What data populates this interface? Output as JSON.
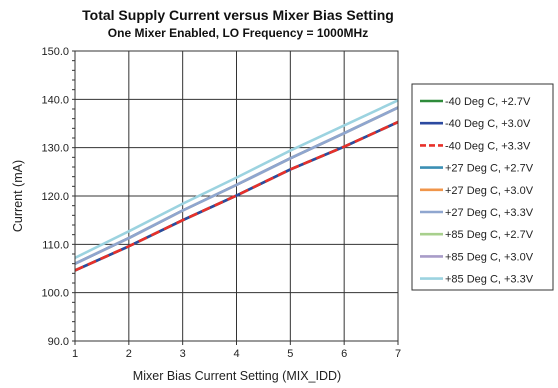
{
  "chart_data": {
    "type": "line",
    "title": "Total Supply Current versus Mixer Bias Setting",
    "subtitle": "One Mixer Enabled, LO Frequency = 1000MHz",
    "xlabel": "Mixer Bias Current Setting (MIX_IDD)",
    "ylabel": "Current (mA)",
    "xlim": [
      1,
      7
    ],
    "ylim": [
      90,
      150
    ],
    "x": [
      1,
      2,
      3,
      4,
      5,
      6,
      7
    ],
    "x_ticks": [
      "1",
      "2",
      "3",
      "4",
      "5",
      "6",
      "7"
    ],
    "y_ticks": [
      "90.0",
      "100.0",
      "110.0",
      "120.0",
      "130.0",
      "140.0",
      "150.0"
    ],
    "grid": true,
    "legend_position": "right",
    "series": [
      {
        "name": "-40 Deg C, +2.7V",
        "color": "#2e8b3a",
        "dash": false,
        "values": [
          104.6,
          109.6,
          115.0,
          120.1,
          125.5,
          130.2,
          135.3
        ]
      },
      {
        "name": "-40 Deg C, +3.0V",
        "color": "#2c4aa0",
        "dash": false,
        "values": [
          104.6,
          109.6,
          115.0,
          120.1,
          125.5,
          130.2,
          135.3
        ]
      },
      {
        "name": "-40 Deg C, +3.3V",
        "color": "#e8302a",
        "dash": true,
        "values": [
          104.6,
          109.6,
          115.0,
          120.1,
          125.5,
          130.2,
          135.3
        ]
      },
      {
        "name": "+27 Deg C, +2.7V",
        "color": "#3b8fb4",
        "dash": false,
        "values": [
          106.0,
          111.3,
          117.0,
          122.3,
          127.8,
          133.0,
          138.3
        ]
      },
      {
        "name": "+27 Deg C, +3.0V",
        "color": "#f0954a",
        "dash": false,
        "values": [
          106.0,
          111.3,
          117.0,
          122.3,
          127.8,
          133.0,
          138.3
        ]
      },
      {
        "name": "+27 Deg C, +3.3V",
        "color": "#8fa6cf",
        "dash": false,
        "values": [
          106.0,
          111.3,
          117.0,
          122.3,
          127.8,
          133.0,
          138.3
        ]
      },
      {
        "name": "+85 Deg C, +2.7V",
        "color": "#a8d08d",
        "dash": false,
        "values": [
          106.0,
          111.3,
          117.0,
          122.3,
          127.8,
          133.0,
          138.3
        ]
      },
      {
        "name": "+85 Deg C, +3.0V",
        "color": "#a89cc8",
        "dash": false,
        "values": [
          106.0,
          111.3,
          117.0,
          122.3,
          127.8,
          133.0,
          138.3
        ]
      },
      {
        "name": "+85 Deg C, +3.3V",
        "color": "#9cd3e0",
        "dash": false,
        "values": [
          107.2,
          112.7,
          118.4,
          123.8,
          129.4,
          134.6,
          139.8
        ]
      }
    ]
  }
}
